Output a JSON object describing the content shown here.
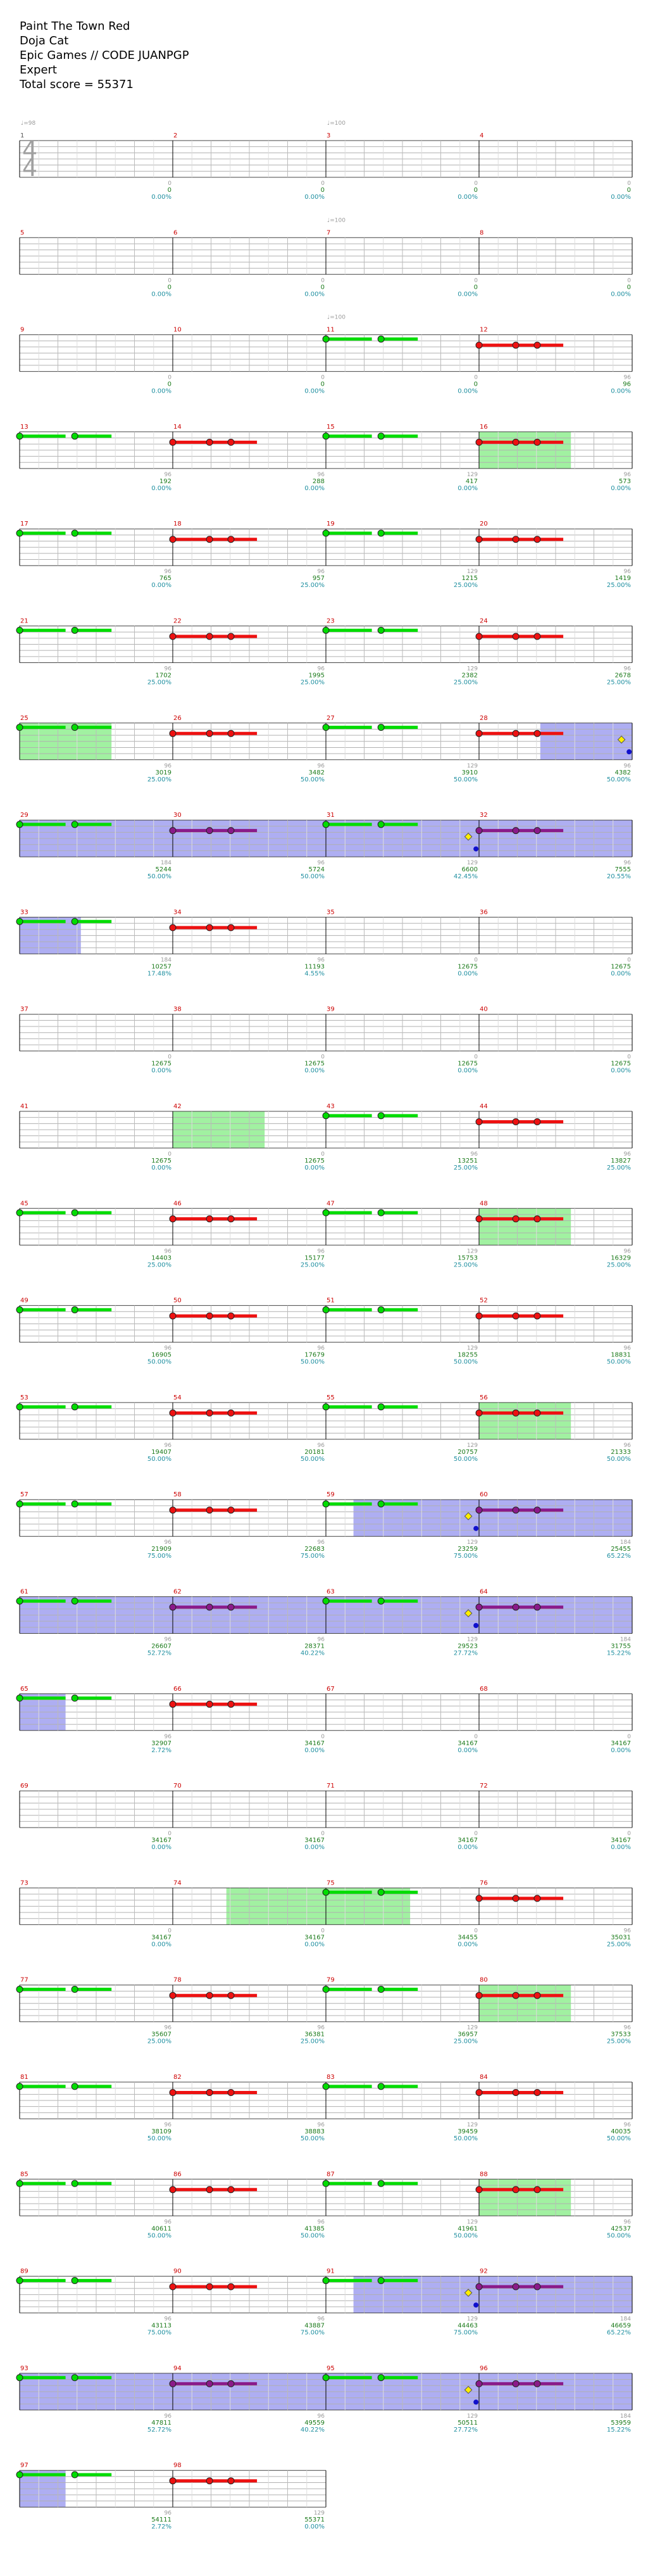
{
  "header": {
    "song": "Paint The Town Red",
    "artist": "Doja Cat",
    "charter": "Epic Games // CODE JUANPGP",
    "difficulty": "Expert",
    "total": "Total score = 55371"
  },
  "time_signature": {
    "top": "4",
    "bottom": "4"
  },
  "tempo_markers": [
    {
      "measure": 1,
      "beat": 0,
      "label": "♩=98"
    },
    {
      "measure": 3,
      "beat": 0,
      "label": "♩=100"
    },
    {
      "measure": 7,
      "beat": 0,
      "label": "♩=100"
    },
    {
      "measure": 11,
      "beat": 0,
      "label": "♩=100"
    }
  ],
  "measures": [
    {
      "n": 1,
      "mult": "0",
      "score": "0",
      "pct": "0.00%"
    },
    {
      "n": 2,
      "mult": "0",
      "score": "0",
      "pct": "0.00%"
    },
    {
      "n": 3,
      "mult": "0",
      "score": "0",
      "pct": "0.00%"
    },
    {
      "n": 4,
      "mult": "0",
      "score": "0",
      "pct": "0.00%"
    },
    {
      "n": 5,
      "mult": "0",
      "score": "0",
      "pct": "0.00%"
    },
    {
      "n": 6,
      "mult": "0",
      "score": "0",
      "pct": "0.00%"
    },
    {
      "n": 7,
      "mult": "0",
      "score": "0",
      "pct": "0.00%"
    },
    {
      "n": 8,
      "mult": "0",
      "score": "0",
      "pct": "0.00%"
    },
    {
      "n": 9,
      "mult": "0",
      "score": "0",
      "pct": "0.00%"
    },
    {
      "n": 10,
      "mult": "0",
      "score": "0",
      "pct": "0.00%"
    },
    {
      "n": 11,
      "mult": "0",
      "score": "0",
      "pct": "0.00%"
    },
    {
      "n": 12,
      "mult": "96",
      "score": "96",
      "pct": "0.00%"
    },
    {
      "n": 13,
      "mult": "96",
      "score": "192",
      "pct": "0.00%"
    },
    {
      "n": 14,
      "mult": "96",
      "score": "288",
      "pct": "0.00%"
    },
    {
      "n": 15,
      "mult": "129",
      "score": "417",
      "pct": "0.00%"
    },
    {
      "n": 16,
      "mult": "96",
      "score": "573",
      "pct": "0.00%"
    },
    {
      "n": 17,
      "mult": "96",
      "score": "765",
      "pct": "0.00%"
    },
    {
      "n": 18,
      "mult": "96",
      "score": "957",
      "pct": "25.00%"
    },
    {
      "n": 19,
      "mult": "129",
      "score": "1215",
      "pct": "25.00%"
    },
    {
      "n": 20,
      "mult": "96",
      "score": "1419",
      "pct": "25.00%"
    },
    {
      "n": 21,
      "mult": "96",
      "score": "1702",
      "pct": "25.00%"
    },
    {
      "n": 22,
      "mult": "96",
      "score": "1995",
      "pct": "25.00%"
    },
    {
      "n": 23,
      "mult": "129",
      "score": "2382",
      "pct": "25.00%"
    },
    {
      "n": 24,
      "mult": "96",
      "score": "2678",
      "pct": "25.00%"
    },
    {
      "n": 25,
      "mult": "96",
      "score": "3019",
      "pct": "25.00%"
    },
    {
      "n": 26,
      "mult": "96",
      "score": "3482",
      "pct": "50.00%"
    },
    {
      "n": 27,
      "mult": "129",
      "score": "3910",
      "pct": "50.00%"
    },
    {
      "n": 28,
      "mult": "96",
      "score": "4382",
      "pct": "50.00%"
    },
    {
      "n": 29,
      "mult": "184",
      "score": "5244",
      "pct": "50.00%"
    },
    {
      "n": 30,
      "mult": "96",
      "score": "5724",
      "pct": "50.00%"
    },
    {
      "n": 31,
      "mult": "129",
      "score": "6600",
      "pct": "42.45%"
    },
    {
      "n": 32,
      "mult": "96",
      "score": "7555",
      "pct": "20.55%"
    },
    {
      "n": 33,
      "mult": "184",
      "score": "10257",
      "pct": "17.48%"
    },
    {
      "n": 34,
      "mult": "96",
      "score": "11193",
      "pct": "4.55%"
    },
    {
      "n": 35,
      "mult": "0",
      "score": "12675",
      "pct": "0.00%"
    },
    {
      "n": 36,
      "mult": "0",
      "score": "12675",
      "pct": "0.00%"
    },
    {
      "n": 37,
      "mult": "0",
      "score": "12675",
      "pct": "0.00%"
    },
    {
      "n": 38,
      "mult": "0",
      "score": "12675",
      "pct": "0.00%"
    },
    {
      "n": 39,
      "mult": "0",
      "score": "12675",
      "pct": "0.00%"
    },
    {
      "n": 40,
      "mult": "0",
      "score": "12675",
      "pct": "0.00%"
    },
    {
      "n": 41,
      "mult": "0",
      "score": "12675",
      "pct": "0.00%"
    },
    {
      "n": 42,
      "mult": "0",
      "score": "12675",
      "pct": "0.00%"
    },
    {
      "n": 43,
      "mult": "96",
      "score": "13251",
      "pct": "25.00%"
    },
    {
      "n": 44,
      "mult": "96",
      "score": "13827",
      "pct": "25.00%"
    },
    {
      "n": 45,
      "mult": "96",
      "score": "14403",
      "pct": "25.00%"
    },
    {
      "n": 46,
      "mult": "96",
      "score": "15177",
      "pct": "25.00%"
    },
    {
      "n": 47,
      "mult": "129",
      "score": "15753",
      "pct": "25.00%"
    },
    {
      "n": 48,
      "mult": "96",
      "score": "16329",
      "pct": "25.00%"
    },
    {
      "n": 49,
      "mult": "96",
      "score": "16905",
      "pct": "50.00%"
    },
    {
      "n": 50,
      "mult": "96",
      "score": "17679",
      "pct": "50.00%"
    },
    {
      "n": 51,
      "mult": "129",
      "score": "18255",
      "pct": "50.00%"
    },
    {
      "n": 52,
      "mult": "96",
      "score": "18831",
      "pct": "50.00%"
    },
    {
      "n": 53,
      "mult": "96",
      "score": "19407",
      "pct": "50.00%"
    },
    {
      "n": 54,
      "mult": "96",
      "score": "20181",
      "pct": "50.00%"
    },
    {
      "n": 55,
      "mult": "129",
      "score": "20757",
      "pct": "50.00%"
    },
    {
      "n": 56,
      "mult": "96",
      "score": "21333",
      "pct": "50.00%"
    },
    {
      "n": 57,
      "mult": "96",
      "score": "21909",
      "pct": "75.00%"
    },
    {
      "n": 58,
      "mult": "96",
      "score": "22683",
      "pct": "75.00%"
    },
    {
      "n": 59,
      "mult": "129",
      "score": "23259",
      "pct": "75.00%"
    },
    {
      "n": 60,
      "mult": "184",
      "score": "25455",
      "pct": "65.22%"
    },
    {
      "n": 61,
      "mult": "96",
      "score": "26607",
      "pct": "52.72%"
    },
    {
      "n": 62,
      "mult": "96",
      "score": "28371",
      "pct": "40.22%"
    },
    {
      "n": 63,
      "mult": "129",
      "score": "29523",
      "pct": "27.72%"
    },
    {
      "n": 64,
      "mult": "184",
      "score": "31755",
      "pct": "15.22%"
    },
    {
      "n": 65,
      "mult": "96",
      "score": "32907",
      "pct": "2.72%"
    },
    {
      "n": 66,
      "mult": "0",
      "score": "34167",
      "pct": "0.00%"
    },
    {
      "n": 67,
      "mult": "0",
      "score": "34167",
      "pct": "0.00%"
    },
    {
      "n": 68,
      "mult": "0",
      "score": "34167",
      "pct": "0.00%"
    },
    {
      "n": 69,
      "mult": "0",
      "score": "34167",
      "pct": "0.00%"
    },
    {
      "n": 70,
      "mult": "0",
      "score": "34167",
      "pct": "0.00%"
    },
    {
      "n": 71,
      "mult": "0",
      "score": "34167",
      "pct": "0.00%"
    },
    {
      "n": 72,
      "mult": "0",
      "score": "34167",
      "pct": "0.00%"
    },
    {
      "n": 73,
      "mult": "0",
      "score": "34167",
      "pct": "0.00%"
    },
    {
      "n": 74,
      "mult": "0",
      "score": "34167",
      "pct": "0.00%"
    },
    {
      "n": 75,
      "mult": "0",
      "score": "34455",
      "pct": "0.00%"
    },
    {
      "n": 76,
      "mult": "96",
      "score": "35031",
      "pct": "25.00%"
    },
    {
      "n": 77,
      "mult": "96",
      "score": "35607",
      "pct": "25.00%"
    },
    {
      "n": 78,
      "mult": "96",
      "score": "36381",
      "pct": "25.00%"
    },
    {
      "n": 79,
      "mult": "129",
      "score": "36957",
      "pct": "25.00%"
    },
    {
      "n": 80,
      "mult": "96",
      "score": "37533",
      "pct": "25.00%"
    },
    {
      "n": 81,
      "mult": "96",
      "score": "38109",
      "pct": "50.00%"
    },
    {
      "n": 82,
      "mult": "96",
      "score": "38883",
      "pct": "50.00%"
    },
    {
      "n": 83,
      "mult": "129",
      "score": "39459",
      "pct": "50.00%"
    },
    {
      "n": 84,
      "mult": "96",
      "score": "40035",
      "pct": "50.00%"
    },
    {
      "n": 85,
      "mult": "96",
      "score": "40611",
      "pct": "50.00%"
    },
    {
      "n": 86,
      "mult": "96",
      "score": "41385",
      "pct": "50.00%"
    },
    {
      "n": 87,
      "mult": "129",
      "score": "41961",
      "pct": "50.00%"
    },
    {
      "n": 88,
      "mult": "96",
      "score": "42537",
      "pct": "50.00%"
    },
    {
      "n": 89,
      "mult": "96",
      "score": "43113",
      "pct": "75.00%"
    },
    {
      "n": 90,
      "mult": "96",
      "score": "43887",
      "pct": "75.00%"
    },
    {
      "n": 91,
      "mult": "129",
      "score": "44463",
      "pct": "75.00%"
    },
    {
      "n": 92,
      "mult": "184",
      "score": "46659",
      "pct": "65.22%"
    },
    {
      "n": 93,
      "mult": "96",
      "score": "47811",
      "pct": "52.72%"
    },
    {
      "n": 94,
      "mult": "96",
      "score": "49559",
      "pct": "40.22%"
    },
    {
      "n": 95,
      "mult": "129",
      "score": "50511",
      "pct": "27.72%"
    },
    {
      "n": 96,
      "mult": "184",
      "score": "53959",
      "pct": "15.22%"
    },
    {
      "n": 97,
      "mult": "96",
      "score": "54111",
      "pct": "2.72%"
    },
    {
      "n": 98,
      "mult": "129",
      "score": "55371",
      "pct": "0.00%"
    }
  ],
  "overdrive_phrases": [
    {
      "start": 16.0,
      "end": 16.6
    },
    {
      "start": 25.0,
      "end": 25.6
    },
    {
      "start": 42.0,
      "end": 42.6
    },
    {
      "start": 48.0,
      "end": 48.6
    },
    {
      "start": 56.0,
      "end": 56.6
    },
    {
      "start": 74.35,
      "end": 75.55
    },
    {
      "start": 80.0,
      "end": 80.6
    },
    {
      "start": 88.0,
      "end": 88.6
    }
  ],
  "activations": [
    {
      "start": 28.4,
      "end": 33.4
    },
    {
      "start": 59.18,
      "end": 65.3
    },
    {
      "start": 91.18,
      "end": 97.3
    }
  ],
  "sp_markers": [
    {
      "pos": 28.93,
      "lane": 1,
      "color": "#ffee00"
    },
    {
      "pos": 28.98,
      "lane": 3,
      "color": "#1010cc"
    },
    {
      "pos": 31.93,
      "lane": 1,
      "color": "#ffee00"
    },
    {
      "pos": 31.98,
      "lane": 3,
      "color": "#1010cc"
    },
    {
      "pos": 59.93,
      "lane": 1,
      "color": "#ffee00"
    },
    {
      "pos": 59.98,
      "lane": 3,
      "color": "#1010cc"
    },
    {
      "pos": 63.93,
      "lane": 1,
      "color": "#ffee00"
    },
    {
      "pos": 63.98,
      "lane": 3,
      "color": "#1010cc"
    },
    {
      "pos": 91.93,
      "lane": 1,
      "color": "#ffee00"
    },
    {
      "pos": 91.98,
      "lane": 3,
      "color": "#1010cc"
    },
    {
      "pos": 95.93,
      "lane": 1,
      "color": "#ffee00"
    },
    {
      "pos": 95.98,
      "lane": 3,
      "color": "#1010cc"
    }
  ],
  "colors": {
    "green_note": "#00dd00",
    "red_note": "#ee1111",
    "purple_note": "#8a1a8a",
    "overdrive_fill": "#90ee90",
    "activation_fill": "#a0a0f0",
    "staff_line": "#b0b0b0",
    "barline": "#000000"
  }
}
